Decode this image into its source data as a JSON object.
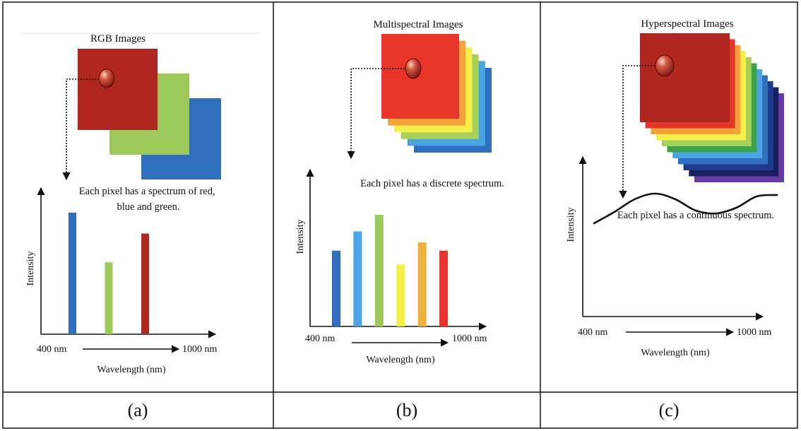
{
  "figure": {
    "panels": [
      {
        "id": "a",
        "caption": "(a)",
        "title": "RGB Images",
        "description_lines": [
          "Each pixel has a spectrum of red,",
          "blue and green."
        ],
        "y_axis_label": "Intensity",
        "x_axis_label": "Wavelength (nm)",
        "x_start_label": "400 nm",
        "x_end_label": "1000 nm"
      },
      {
        "id": "b",
        "caption": "(b)",
        "title": "Multispectral Images",
        "description_lines": [
          "Each pixel has a discrete spectrum."
        ],
        "y_axis_label": "Intensity",
        "x_axis_label": "Wavelength (nm)",
        "x_start_label": "400 nm",
        "x_end_label": "1000 nm"
      },
      {
        "id": "c",
        "caption": "(c)",
        "title": "Hyperspectral Images",
        "description_lines": [
          "Each pixel has a continuous spectrum."
        ],
        "y_axis_label": "Intensity",
        "x_axis_label": "Wavelength (nm)",
        "x_start_label": "400 nm",
        "x_end_label": "1000 nm"
      }
    ]
  },
  "chart_data": [
    {
      "type": "bar",
      "panel": "a",
      "values": [
        0.93,
        0.55,
        0.77
      ],
      "colors": [
        "#2f6fbe",
        "#9cc95a",
        "#b02722"
      ],
      "layer_colors": [
        "#b02722",
        "#9cc95a",
        "#2f6fbe"
      ]
    },
    {
      "type": "bar",
      "panel": "b",
      "values": [
        0.55,
        0.69,
        0.81,
        0.45,
        0.61,
        0.55
      ],
      "colors": [
        "#2f6fbe",
        "#4aa3e2",
        "#9cc95a",
        "#f5ef4a",
        "#eeb23a",
        "#e8352a"
      ],
      "layer_colors": [
        "#e8352a",
        "#f4a23a",
        "#f5ef4a",
        "#a9d15a",
        "#4aa3e2",
        "#2f6fbe"
      ]
    },
    {
      "type": "line",
      "panel": "c",
      "values": [
        0.66,
        0.74,
        0.83,
        0.87,
        0.83,
        0.75,
        0.73,
        0.77,
        0.85,
        0.86
      ],
      "colors": [
        "#111111"
      ],
      "layer_colors": [
        "#b02722",
        "#e8352a",
        "#f4a23a",
        "#f5ef4a",
        "#a9d15a",
        "#3da34a",
        "#4aa3e2",
        "#2f6fbe",
        "#1f3a8a",
        "#16215e",
        "#6a3aa8"
      ]
    }
  ]
}
